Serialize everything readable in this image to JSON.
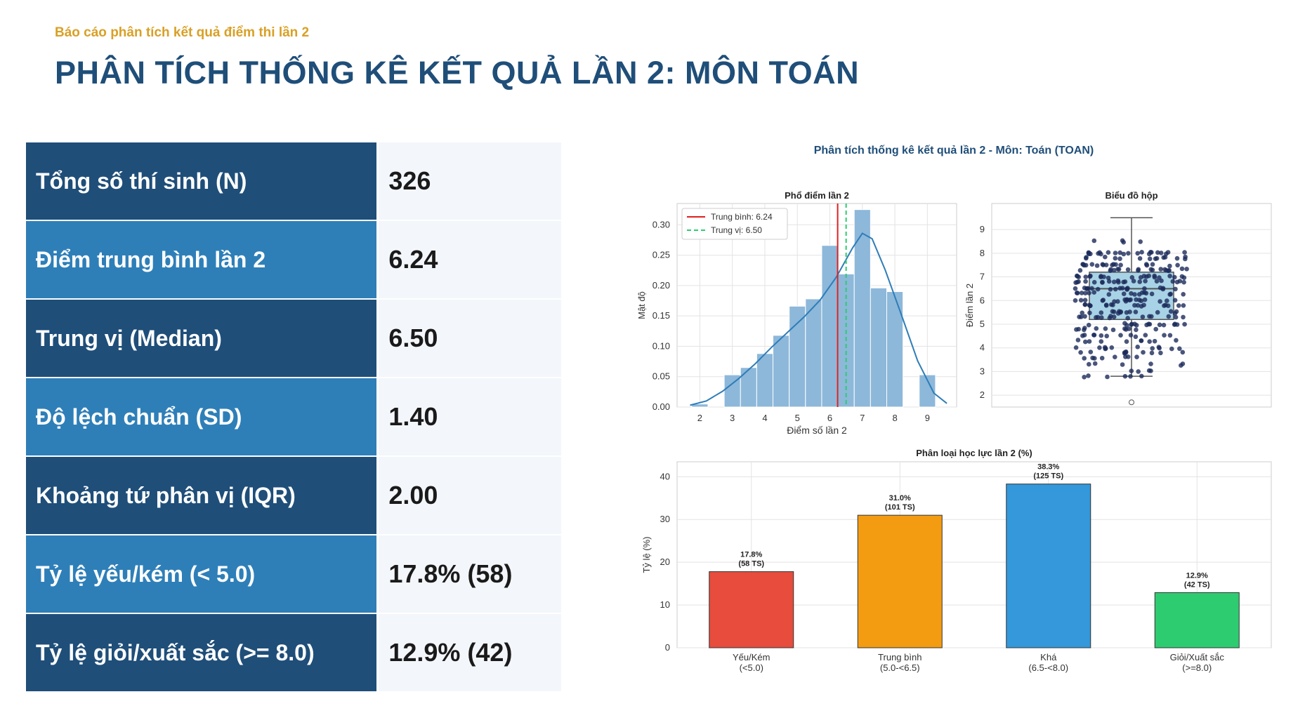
{
  "header": {
    "subtitle": "Báo cáo phân tích kết quả điểm thi lần 2",
    "title": "PHÂN TÍCH THỐNG KÊ KẾT QUẢ LẦN 2: MÔN TOÁN"
  },
  "stats": [
    {
      "label": "Tổng số thí sinh (N)",
      "value": "326"
    },
    {
      "label": "Điểm trung bình lần 2",
      "value": "6.24"
    },
    {
      "label": "Trung vị (Median)",
      "value": "6.50"
    },
    {
      "label": "Độ lệch chuẩn (SD)",
      "value": "1.40"
    },
    {
      "label": "Khoảng tứ phân vị (IQR)",
      "value": "2.00"
    },
    {
      "label": "Tỷ lệ yếu/kém (< 5.0)",
      "value": "17.8% (58)"
    },
    {
      "label": "Tỷ lệ giỏi/xuất sắc (>= 8.0)",
      "value": "12.9% (42)"
    }
  ],
  "colors": {
    "dark_blue": "#1f4e79",
    "mid_blue": "#2e7fb8",
    "gold": "#d9a026",
    "hist": "#8db8da",
    "mean_line": "#e02020",
    "median_line": "#2ecc71",
    "box": "#a8d3e6",
    "points": "#1b2a5a"
  },
  "chart_data": [
    {
      "type": "bar",
      "title": "Phổ điểm lần 2",
      "suptitle": "Phân tích thống kê kết quả lần 2 - Môn: Toán (TOAN)",
      "xlabel": "Điểm số lần 2",
      "ylabel": "Mật độ",
      "xlim": [
        1.3,
        9.9
      ],
      "ylim": [
        0,
        0.335
      ],
      "xticks": [
        2,
        3,
        4,
        5,
        6,
        7,
        8,
        9
      ],
      "yticks": [
        "0.00",
        "0.05",
        "0.10",
        "0.15",
        "0.20",
        "0.25",
        "0.30"
      ],
      "bins": [
        {
          "x0": 1.75,
          "x1": 2.25,
          "y": 0.005
        },
        {
          "x0": 2.75,
          "x1": 3.25,
          "y": 0.053
        },
        {
          "x0": 3.25,
          "x1": 3.75,
          "y": 0.065
        },
        {
          "x0": 3.75,
          "x1": 4.25,
          "y": 0.088
        },
        {
          "x0": 4.25,
          "x1": 4.75,
          "y": 0.118
        },
        {
          "x0": 4.75,
          "x1": 5.25,
          "y": 0.166
        },
        {
          "x0": 5.25,
          "x1": 5.75,
          "y": 0.178
        },
        {
          "x0": 5.75,
          "x1": 6.25,
          "y": 0.266
        },
        {
          "x0": 6.25,
          "x1": 6.75,
          "y": 0.219
        },
        {
          "x0": 6.75,
          "x1": 7.25,
          "y": 0.325
        },
        {
          "x0": 7.25,
          "x1": 7.75,
          "y": 0.196
        },
        {
          "x0": 7.75,
          "x1": 8.25,
          "y": 0.19
        },
        {
          "x0": 8.75,
          "x1": 9.25,
          "y": 0.053
        }
      ],
      "kde": [
        [
          1.7,
          0.003
        ],
        [
          2.2,
          0.01
        ],
        [
          2.7,
          0.026
        ],
        [
          3.2,
          0.047
        ],
        [
          3.7,
          0.071
        ],
        [
          4.2,
          0.098
        ],
        [
          4.7,
          0.123
        ],
        [
          5.2,
          0.148
        ],
        [
          5.7,
          0.176
        ],
        [
          6.2,
          0.214
        ],
        [
          6.7,
          0.262
        ],
        [
          7.0,
          0.286
        ],
        [
          7.3,
          0.277
        ],
        [
          7.7,
          0.226
        ],
        [
          8.2,
          0.152
        ],
        [
          8.7,
          0.076
        ],
        [
          9.2,
          0.023
        ],
        [
          9.6,
          0.006
        ]
      ],
      "mean": 6.24,
      "median": 6.5,
      "legend": [
        "Trung bình: 6.24",
        "Trung vị: 6.50"
      ],
      "legend_position": "top-left",
      "grid": true
    },
    {
      "type": "box",
      "title": "Biểu đồ hộp",
      "ylabel": "Điểm lần 2",
      "ylim": [
        1.5,
        10.1
      ],
      "yticks": [
        2,
        3,
        4,
        5,
        6,
        7,
        8,
        9
      ],
      "whisker_low": 2.8,
      "q1": 5.2,
      "median": 6.5,
      "q3": 7.2,
      "whisker_high": 9.5,
      "outliers": [
        1.7
      ],
      "grid": true
    },
    {
      "type": "bar",
      "title": "Phân loại học lực lần 2 (%)",
      "ylabel": "Tỷ lệ (%)",
      "ylim": [
        0,
        43.5
      ],
      "yticks": [
        0,
        10,
        20,
        30,
        40
      ],
      "categories": [
        {
          "line1": "Yếu/Kém",
          "line2": "(<5.0)"
        },
        {
          "line1": "Trung bình",
          "line2": "(5.0-<6.5)"
        },
        {
          "line1": "Khá",
          "line2": "(6.5-<8.0)"
        },
        {
          "line1": "Giỏi/Xuất sắc",
          "line2": "(>=8.0)"
        }
      ],
      "values": [
        17.8,
        31.0,
        38.3,
        12.9
      ],
      "labels": [
        {
          "pct": "17.8%",
          "count": "(58 TS)"
        },
        {
          "pct": "31.0%",
          "count": "(101 TS)"
        },
        {
          "pct": "38.3%",
          "count": "(125 TS)"
        },
        {
          "pct": "12.9%",
          "count": "(42 TS)"
        }
      ],
      "colors": [
        "#e74c3c",
        "#f39c12",
        "#3498db",
        "#2ecc71"
      ],
      "grid": true
    }
  ]
}
